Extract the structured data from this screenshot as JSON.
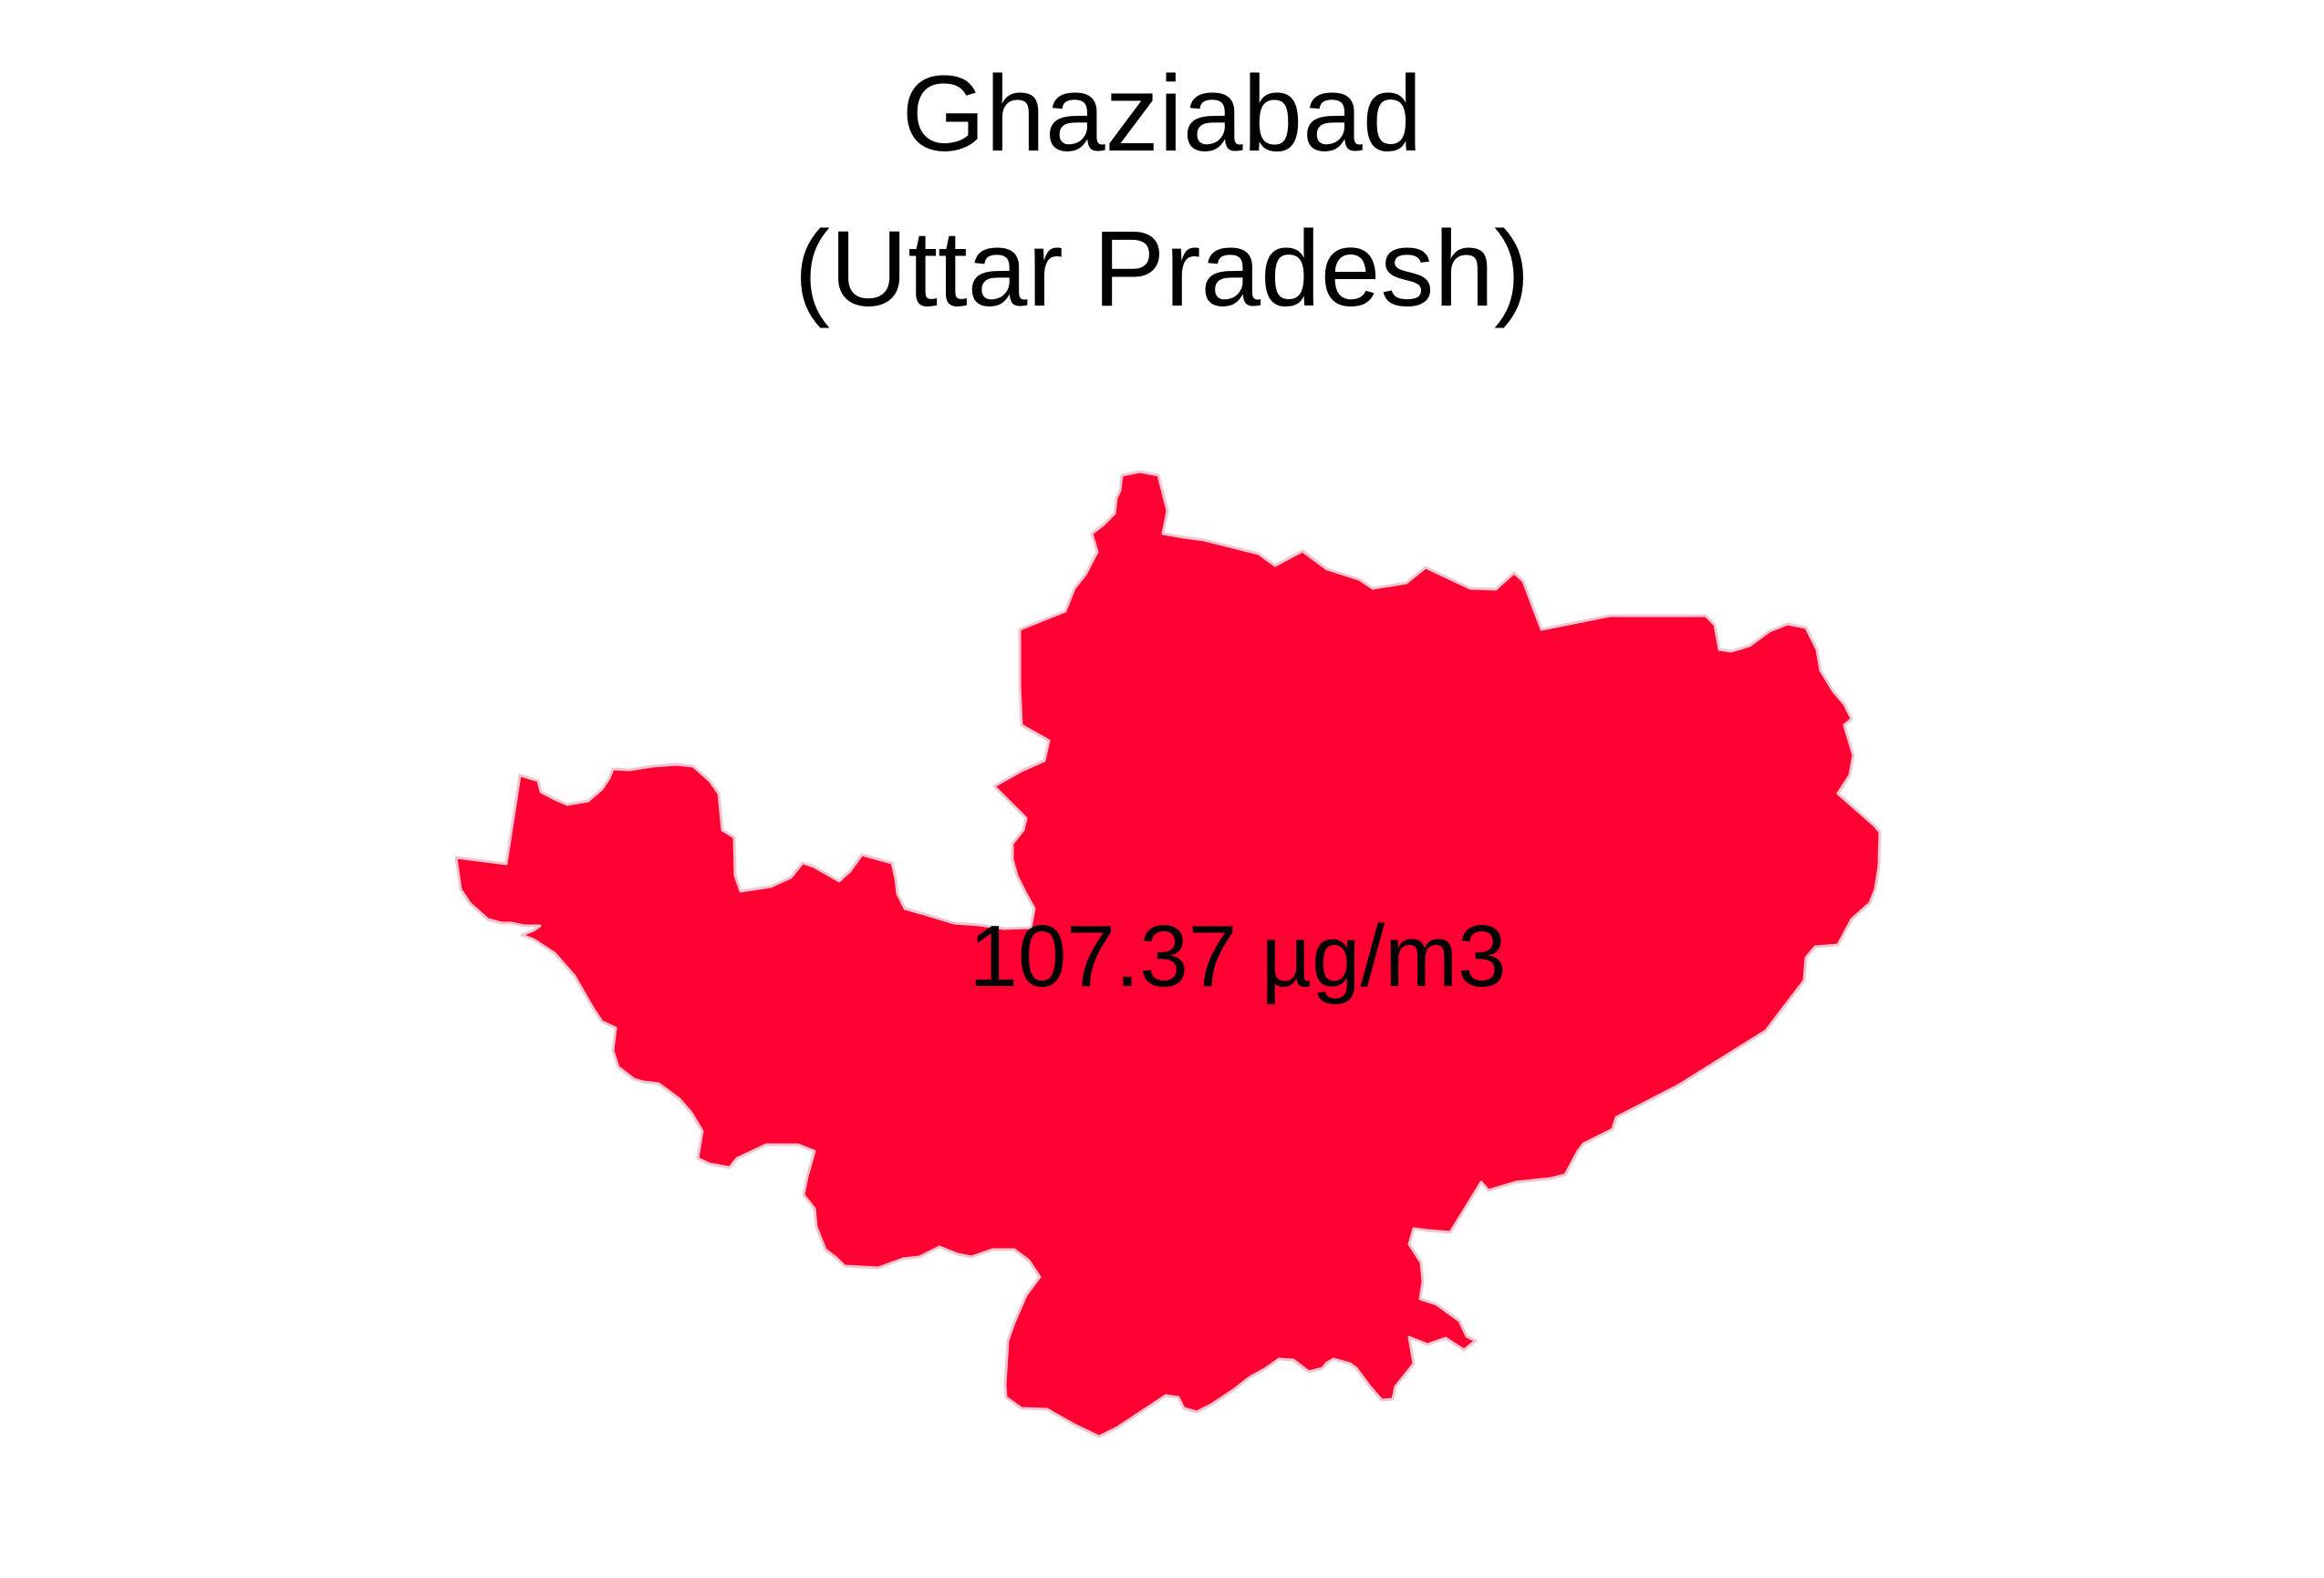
{
  "title": {
    "district": "Ghaziabad",
    "state": "(Uttar Pradesh)"
  },
  "map": {
    "region_name": "Ghaziabad",
    "fill_color": "#ff0033",
    "border_color": "#f4c6cf",
    "value_label": "107.37 µg/m3"
  }
}
